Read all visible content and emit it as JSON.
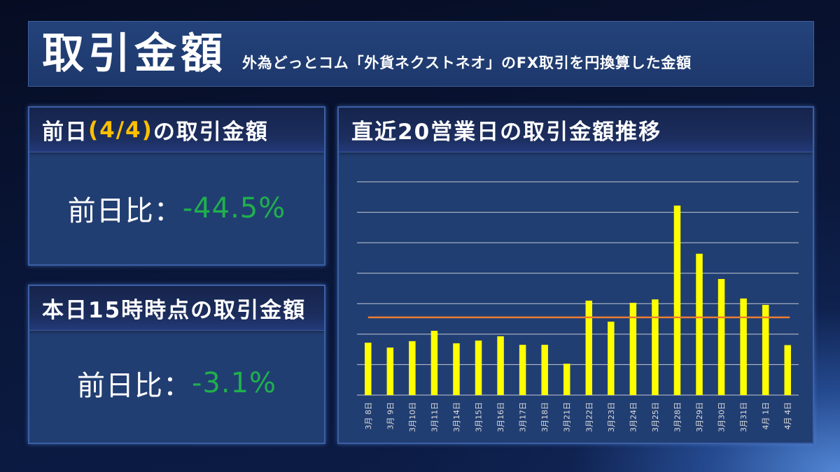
{
  "header": {
    "title": "取引金額",
    "subtitle": "外為どっとコム「外貨ネクストネオ」のFX取引を円換算した金額"
  },
  "prev_day": {
    "title_prefix": "前日",
    "title_date": "(4/4)",
    "title_suffix": "の取引金額",
    "change_label": "前日比：",
    "change_value": "-44.5%"
  },
  "today": {
    "title": "本日15時時点の取引金額",
    "change_label": "前日比：",
    "change_value": "-3.1%"
  },
  "colors": {
    "accent_gold": "#ffc000",
    "change_green": "#1fb04d"
  },
  "chart_data": {
    "type": "bar",
    "title": "直近20営業日の取引金額推移",
    "categories": [
      "3月 8日",
      "3月 9日",
      "3月10日",
      "3月11日",
      "3月14日",
      "3月15日",
      "3月16日",
      "3月17日",
      "3月18日",
      "3月21日",
      "3月22日",
      "3月23日",
      "3月24日",
      "3月25日",
      "3月28日",
      "3月29日",
      "3月30日",
      "3月31日",
      "4月 1日",
      "4月 4日"
    ],
    "values": [
      1.72,
      1.56,
      1.77,
      2.11,
      1.7,
      1.79,
      1.93,
      1.65,
      1.65,
      1.03,
      3.1,
      2.41,
      3.03,
      3.14,
      6.22,
      4.64,
      3.81,
      3.17,
      2.96,
      1.64
    ],
    "reference_line": 2.55,
    "xlabel": "",
    "ylabel": "",
    "ylim": [
      0,
      7
    ],
    "ygrid_step": 1,
    "grid": true,
    "y_tick_labels_visible": false,
    "legend": "none",
    "colors": {
      "bar": "#ffff00",
      "reference_line": "#ed7d31",
      "grid": "#c3c8d2",
      "tick_label": "#dcdcdc"
    }
  }
}
